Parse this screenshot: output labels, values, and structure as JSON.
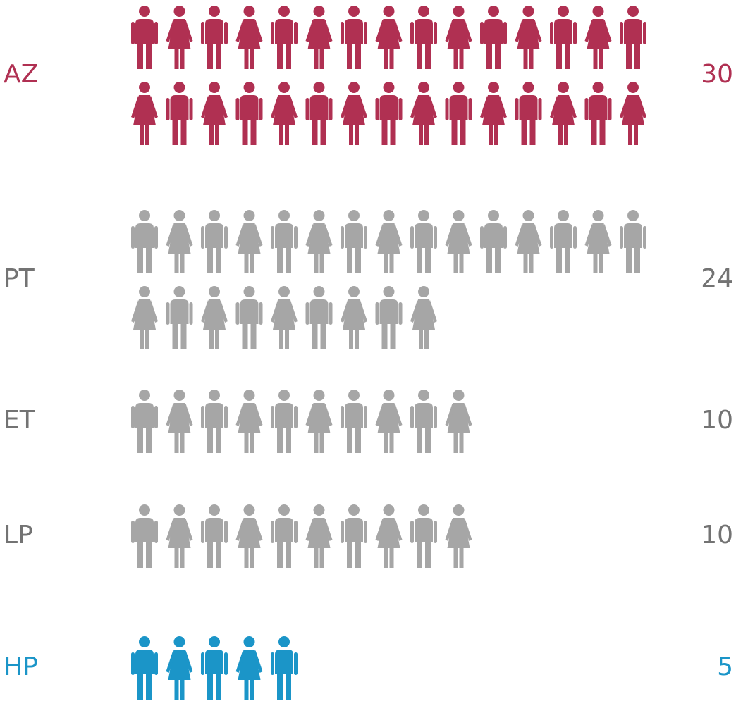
{
  "chart_data": {
    "type": "pictogram",
    "categories": [
      "AZ",
      "PT",
      "ET",
      "LP",
      "HP"
    ],
    "values": [
      30,
      24,
      10,
      10,
      5
    ],
    "colors": [
      "#b03052",
      "#a6a6a6",
      "#a6a6a6",
      "#a6a6a6",
      "#1b95c8"
    ],
    "label_colors": [
      "#b03052",
      "#737373",
      "#737373",
      "#737373",
      "#1b95c8"
    ]
  }
}
